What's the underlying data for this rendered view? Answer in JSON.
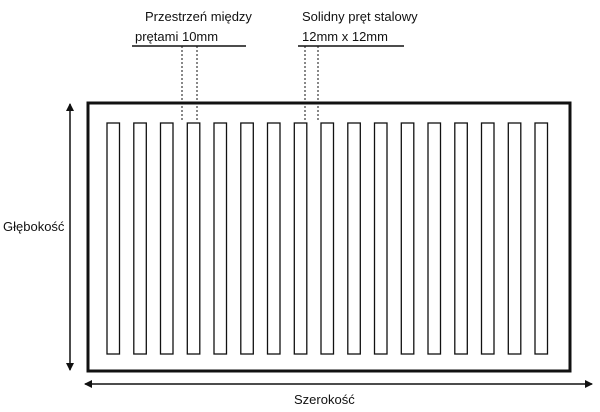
{
  "annotations": {
    "spacing_line1": "Przestrzeń między",
    "spacing_line2": "prętami 10mm",
    "bar_line1": "Solidny pręt stalowy",
    "bar_line2": "12mm x 12mm"
  },
  "dimensions": {
    "depth_label": "Głębokość",
    "width_label": "Szerokość"
  },
  "grate": {
    "bar_count": 17
  },
  "colors": {
    "line": "#111111",
    "background": "#ffffff"
  }
}
